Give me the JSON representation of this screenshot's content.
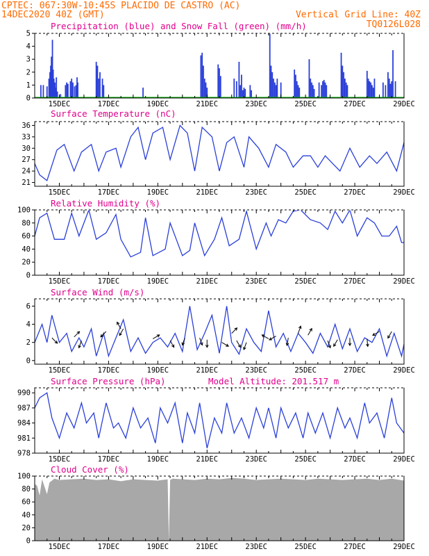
{
  "header": {
    "line1_left": "CPTEC:  067:30W-10:45S  PLACIDO DE CASTRO (AC)",
    "line2_left": "14DEC2020 40Z (GMT)",
    "line2_right": "Vertical Grid Line: 40Z",
    "line3_right": "TQ0126L028"
  },
  "colors": {
    "header": "#ff6a00",
    "panel_title": "#e0008c",
    "line": "#2a3fd8",
    "precip_bar": "#2a3fd8",
    "snow": "#00b000",
    "cloud_fill": "#a8a8a8",
    "wind_arrow": "#000000"
  },
  "x_axis": {
    "start_day": 14.0,
    "end_day": 29.0,
    "tick_labels": [
      "15DEC",
      "17DEC",
      "19DEC",
      "21DEC",
      "23DEC",
      "25DEC",
      "27DEC",
      "29DEC"
    ]
  },
  "chart_data": [
    {
      "id": "precip",
      "type": "bar",
      "title": "Precipitation (blue) and Snow Fall (green) (mm/h)",
      "ylim": [
        0,
        5
      ],
      "yticks": [
        "0",
        "1",
        "2",
        "3",
        "4",
        "5"
      ],
      "ytick_values": [
        0,
        1,
        2,
        3,
        4,
        5
      ],
      "series": [
        {
          "name": "Precipitation",
          "color": "#2a3fd8",
          "x": [
            14.25,
            14.35,
            14.5,
            14.58,
            14.62,
            14.65,
            14.68,
            14.72,
            14.75,
            14.78,
            14.82,
            14.85,
            14.88,
            14.92,
            15.05,
            15.25,
            15.3,
            15.35,
            15.45,
            15.5,
            15.55,
            15.62,
            15.68,
            15.72,
            15.75,
            16.5,
            16.55,
            16.6,
            16.65,
            16.75,
            16.8,
            18.4,
            20.75,
            20.8,
            20.85,
            20.9,
            20.95,
            21.0,
            21.45,
            21.5,
            21.55,
            22.1,
            22.2,
            22.3,
            22.35,
            22.4,
            22.45,
            22.5,
            22.55,
            22.75,
            22.8,
            23.55,
            23.6,
            23.65,
            23.7,
            23.75,
            23.8,
            23.85,
            24.0,
            24.55,
            24.6,
            24.65,
            24.7,
            24.75,
            25.15,
            25.2,
            25.25,
            25.3,
            25.35,
            25.55,
            25.65,
            25.7,
            25.75,
            25.8,
            25.85,
            26.45,
            26.5,
            26.55,
            26.6,
            26.65,
            26.7,
            27.5,
            27.55,
            27.6,
            27.65,
            27.7,
            27.75,
            27.8,
            28.15,
            28.25,
            28.35,
            28.4,
            28.45,
            28.5,
            28.55,
            28.65
          ],
          "values": [
            1.0,
            1.0,
            0.9,
            1.5,
            2.0,
            2.5,
            3.2,
            4.5,
            2.2,
            1.5,
            1.2,
            0.8,
            1.6,
            0.5,
            0.3,
            1.0,
            1.2,
            1.1,
            1.3,
            1.5,
            1.2,
            0.9,
            1.0,
            1.6,
            1.2,
            2.8,
            2.5,
            1.5,
            2.0,
            1.5,
            1.0,
            0.8,
            3.3,
            3.5,
            2.5,
            1.5,
            1.2,
            0.8,
            2.6,
            2.3,
            1.7,
            1.5,
            1.3,
            2.8,
            1.0,
            1.8,
            0.6,
            0.8,
            0.7,
            1.0,
            0.6,
            5.0,
            2.5,
            2.0,
            1.5,
            1.2,
            1.0,
            1.5,
            1.2,
            2.2,
            1.8,
            1.3,
            1.0,
            0.8,
            3.0,
            1.5,
            1.2,
            1.0,
            0.7,
            1.2,
            1.0,
            1.3,
            1.4,
            1.2,
            1.0,
            3.5,
            2.5,
            2.0,
            1.5,
            1.2,
            1.0,
            2.1,
            1.5,
            1.3,
            1.2,
            1.0,
            0.8,
            1.5,
            1.2,
            1.0,
            2.0,
            1.5,
            1.1,
            1.3,
            3.7,
            1.3
          ]
        },
        {
          "name": "Snow Fall",
          "color": "#00b000",
          "x": [
            14.0,
            29.0
          ],
          "values": [
            0,
            0
          ]
        }
      ]
    },
    {
      "id": "temperature",
      "type": "line",
      "title": "Surface Temperature (nC)",
      "ylim": [
        20,
        37
      ],
      "yticks": [
        "21",
        "24",
        "27",
        "30",
        "33",
        "36"
      ],
      "ytick_values": [
        21,
        24,
        27,
        30,
        33,
        36
      ],
      "series": [
        {
          "name": "Surface Temperature",
          "x": [
            14.0,
            14.2,
            14.5,
            14.9,
            15.2,
            15.6,
            15.9,
            16.3,
            16.6,
            16.9,
            17.3,
            17.5,
            17.9,
            18.2,
            18.5,
            18.8,
            19.2,
            19.5,
            19.9,
            20.2,
            20.5,
            20.8,
            21.2,
            21.5,
            21.8,
            22.1,
            22.5,
            22.7,
            23.1,
            23.5,
            23.8,
            24.2,
            24.5,
            24.9,
            25.2,
            25.5,
            25.8,
            26.1,
            26.4,
            26.8,
            27.2,
            27.6,
            27.9,
            28.3,
            28.7,
            29.0
          ],
          "values": [
            26,
            23,
            21.5,
            29.5,
            31,
            24,
            29,
            31,
            24,
            29,
            30,
            25,
            33,
            35.5,
            27,
            34,
            35.5,
            27,
            36,
            34,
            24,
            35.5,
            33,
            24,
            31.5,
            33,
            25,
            33,
            30,
            25,
            31,
            29,
            25,
            28,
            28,
            25,
            28,
            26,
            24,
            30,
            25,
            28,
            26,
            29,
            24,
            31.5
          ]
        }
      ]
    },
    {
      "id": "humidity",
      "type": "line",
      "title": "Relative Humidity (%)",
      "ylim": [
        0,
        100
      ],
      "yticks": [
        "0",
        "20",
        "40",
        "60",
        "80",
        "100"
      ],
      "ytick_values": [
        0,
        20,
        40,
        60,
        80,
        100
      ],
      "series": [
        {
          "name": "Relative Humidity",
          "x": [
            14.0,
            14.2,
            14.5,
            14.8,
            15.2,
            15.5,
            15.8,
            16.2,
            16.5,
            16.9,
            17.3,
            17.5,
            17.9,
            18.3,
            18.5,
            18.8,
            19.3,
            19.5,
            20.0,
            20.3,
            20.5,
            20.9,
            21.3,
            21.6,
            21.9,
            22.3,
            22.6,
            23.0,
            23.4,
            23.6,
            23.9,
            24.2,
            24.5,
            24.8,
            25.2,
            25.6,
            25.9,
            26.2,
            26.5,
            26.8,
            27.1,
            27.5,
            27.8,
            28.1,
            28.4,
            28.7,
            28.9,
            29.0
          ],
          "values": [
            60,
            88,
            95,
            55,
            55,
            95,
            60,
            100,
            55,
            65,
            93,
            55,
            28,
            35,
            88,
            30,
            40,
            80,
            30,
            38,
            80,
            30,
            55,
            88,
            45,
            55,
            98,
            40,
            80,
            60,
            85,
            80,
            98,
            100,
            85,
            80,
            70,
            98,
            80,
            100,
            60,
            88,
            80,
            60,
            60,
            75,
            50,
            50
          ]
        }
      ]
    },
    {
      "id": "wind",
      "type": "line",
      "title": "Surface Wind (m/s)",
      "ylim": [
        -0.4,
        6.8
      ],
      "yticks": [
        "0",
        "2",
        "4",
        "6"
      ],
      "ytick_values": [
        0,
        2,
        4,
        6
      ],
      "series": [
        {
          "name": "Surface Wind",
          "x": [
            14.0,
            14.3,
            14.5,
            14.7,
            15.0,
            15.3,
            15.5,
            15.8,
            16.0,
            16.3,
            16.5,
            16.8,
            17.0,
            17.3,
            17.6,
            17.9,
            18.2,
            18.5,
            18.8,
            19.1,
            19.4,
            19.7,
            20.0,
            20.3,
            20.6,
            20.9,
            21.2,
            21.5,
            21.8,
            22.0,
            22.3,
            22.6,
            22.9,
            23.2,
            23.5,
            23.8,
            24.1,
            24.4,
            24.7,
            25.0,
            25.3,
            25.6,
            25.9,
            26.2,
            26.5,
            26.8,
            27.1,
            27.4,
            27.7,
            28.0,
            28.3,
            28.6,
            28.9,
            29.0
          ],
          "values": [
            2,
            4,
            2,
            5,
            2,
            3,
            1,
            2.5,
            1.5,
            3.5,
            0.5,
            3,
            0.5,
            2.5,
            4.5,
            1,
            2.5,
            0.8,
            2,
            2.5,
            1.5,
            3,
            1,
            6,
            1.2,
            3,
            5,
            0.8,
            6,
            2,
            0.7,
            3.5,
            2,
            1,
            5.5,
            1.5,
            3,
            1,
            3,
            2,
            0.8,
            3,
            1.5,
            4,
            1.3,
            3.5,
            1,
            2.5,
            2,
            3.5,
            0.5,
            3,
            0.5,
            1.8
          ]
        }
      ],
      "arrows": [
        {
          "x": 14.7,
          "speed": 2.5,
          "dir": 135
        },
        {
          "x": 15.6,
          "speed": 2.6,
          "dir": 45
        },
        {
          "x": 15.9,
          "speed": 2.2,
          "dir": 200
        },
        {
          "x": 16.9,
          "speed": 3.2,
          "dir": 225
        },
        {
          "x": 17.5,
          "speed": 3.5,
          "dir": 330
        },
        {
          "x": 17.6,
          "speed": 3.5,
          "dir": 210
        },
        {
          "x": 18.8,
          "speed": 2.4,
          "dir": 60
        },
        {
          "x": 19.5,
          "speed": 2.2,
          "dir": 150
        },
        {
          "x": 20.1,
          "speed": 2.5,
          "dir": 200
        },
        {
          "x": 20.7,
          "speed": 2.5,
          "dir": 160
        },
        {
          "x": 21.0,
          "speed": 2.3,
          "dir": 180
        },
        {
          "x": 21.6,
          "speed": 2.0,
          "dir": 120
        },
        {
          "x": 22.0,
          "speed": 3.0,
          "dir": 45
        },
        {
          "x": 22.2,
          "speed": 2.2,
          "dir": 150
        },
        {
          "x": 22.6,
          "speed": 2.0,
          "dir": 200
        },
        {
          "x": 23.5,
          "speed": 2.4,
          "dir": 300
        },
        {
          "x": 23.8,
          "speed": 2.7,
          "dir": 240
        },
        {
          "x": 24.3,
          "speed": 2.5,
          "dir": 190
        },
        {
          "x": 24.7,
          "speed": 3.0,
          "dir": 20
        },
        {
          "x": 25.1,
          "speed": 2.8,
          "dir": 30
        },
        {
          "x": 25.9,
          "speed": 2.2,
          "dir": 160
        },
        {
          "x": 26.3,
          "speed": 2.3,
          "dir": 210
        },
        {
          "x": 26.8,
          "speed": 2.5,
          "dir": 180
        },
        {
          "x": 27.5,
          "speed": 2.4,
          "dir": 175
        },
        {
          "x": 28.0,
          "speed": 3.2,
          "dir": 240
        },
        {
          "x": 28.5,
          "speed": 3.2,
          "dir": 210
        }
      ]
    },
    {
      "id": "pressure",
      "type": "line",
      "title": "Surface Pressure (hPa)",
      "subtitle": "Model Altitude: 201.517 m",
      "ylim": [
        978,
        991
      ],
      "yticks": [
        "978",
        "981",
        "984",
        "987",
        "990"
      ],
      "ytick_values": [
        978,
        981,
        984,
        987,
        990
      ],
      "series": [
        {
          "name": "Surface Pressure",
          "x": [
            14.0,
            14.2,
            14.5,
            14.7,
            15.0,
            15.3,
            15.6,
            15.9,
            16.1,
            16.4,
            16.6,
            16.9,
            17.2,
            17.4,
            17.7,
            18.0,
            18.3,
            18.6,
            18.9,
            19.1,
            19.4,
            19.7,
            20.0,
            20.2,
            20.5,
            20.7,
            21.0,
            21.3,
            21.6,
            21.8,
            22.1,
            22.4,
            22.7,
            23.0,
            23.3,
            23.5,
            23.8,
            24.0,
            24.3,
            24.6,
            24.9,
            25.1,
            25.4,
            25.7,
            26.0,
            26.3,
            26.6,
            26.8,
            27.1,
            27.4,
            27.6,
            27.9,
            28.2,
            28.5,
            28.7,
            29.0
          ],
          "values": [
            987,
            989,
            990,
            985,
            981,
            986,
            983,
            988,
            984,
            986,
            981,
            988,
            983,
            984,
            981,
            987,
            983,
            985,
            980,
            987,
            984,
            988,
            980,
            986,
            982,
            988,
            979,
            985,
            982,
            988,
            982,
            985,
            981,
            987,
            983,
            987,
            981,
            987,
            983,
            986,
            981,
            986,
            982,
            986,
            981,
            987,
            983,
            985,
            981,
            988,
            984,
            986,
            981,
            989,
            984,
            982
          ]
        }
      ]
    },
    {
      "id": "cloud",
      "type": "area",
      "title": "Cloud Cover (%)",
      "ylim": [
        0,
        100
      ],
      "yticks": [
        "0",
        "20",
        "40",
        "60",
        "80",
        "100"
      ],
      "ytick_values": [
        0,
        20,
        40,
        60,
        80,
        100
      ],
      "series": [
        {
          "name": "Cloud Cover",
          "x": [
            14.0,
            14.1,
            14.2,
            14.3,
            14.5,
            14.6,
            14.8,
            15.0,
            15.5,
            16.0,
            16.5,
            17.0,
            17.5,
            18.0,
            18.5,
            19.0,
            19.4,
            19.45,
            19.5,
            19.6,
            20.0,
            20.5,
            21.0,
            21.5,
            22.0,
            22.5,
            23.0,
            23.5,
            24.0,
            24.5,
            25.0,
            25.5,
            26.0,
            26.5,
            27.0,
            27.5,
            28.0,
            28.5,
            29.0
          ],
          "values": [
            88,
            85,
            70,
            95,
            72,
            90,
            96,
            94,
            95,
            96,
            94,
            95,
            92,
            95,
            94,
            93,
            95,
            0,
            94,
            96,
            95,
            94,
            96,
            95,
            97,
            96,
            94,
            95,
            96,
            95,
            94,
            96,
            95,
            94,
            95,
            96,
            94,
            96,
            93
          ]
        }
      ]
    }
  ]
}
